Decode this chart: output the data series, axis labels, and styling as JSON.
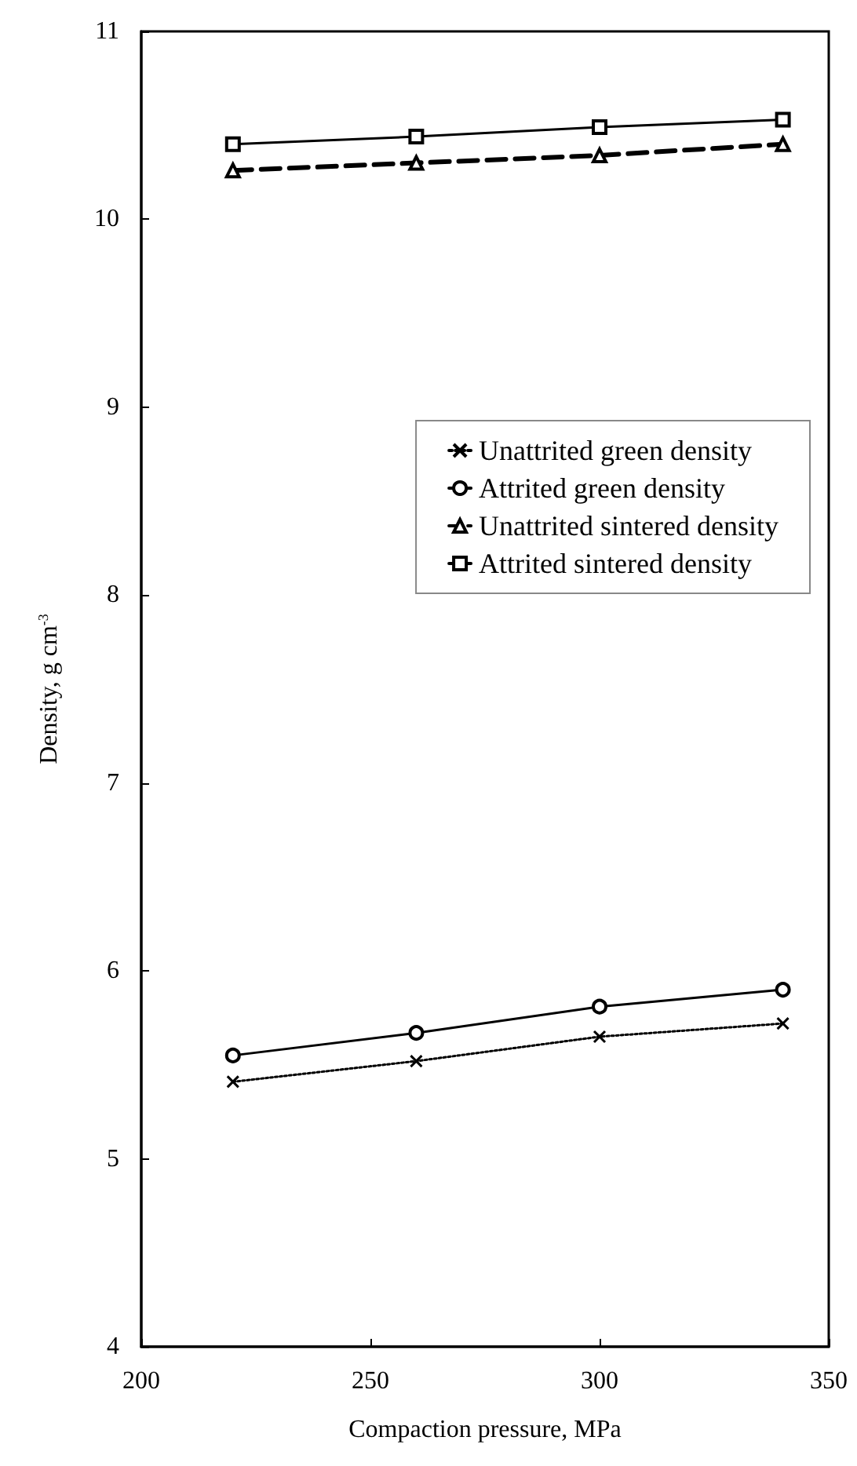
{
  "chart_data": {
    "type": "line",
    "xlabel": "Compaction pressure, MPa",
    "ylabel": "Density, g cm$^{-3}$",
    "x": [
      220,
      260,
      300,
      340
    ],
    "series": [
      {
        "name": "Unattrited green density",
        "color": "#000000",
        "marker": "cross",
        "line_style": "dotted",
        "values": [
          5.41,
          5.52,
          5.65,
          5.72
        ]
      },
      {
        "name": "Attrited green density",
        "color": "#000000",
        "marker": "circle",
        "line_style": "solid",
        "values": [
          5.55,
          5.67,
          5.81,
          5.9
        ]
      },
      {
        "name": "Unattrited sintered density",
        "color": "#000000",
        "marker": "triangle",
        "line_style": "dashed",
        "values": [
          10.26,
          10.3,
          10.34,
          10.4
        ]
      },
      {
        "name": "Attrited sintered density",
        "color": "#000000",
        "marker": "square",
        "line_style": "solid",
        "values": [
          10.4,
          10.44,
          10.49,
          10.53
        ]
      }
    ],
    "xlim": [
      200,
      350
    ],
    "xticks": [
      200,
      250,
      300,
      350
    ],
    "ylim": [
      4,
      11
    ],
    "yticks": [
      4,
      5,
      6,
      7,
      8,
      9,
      10,
      11
    ],
    "grid": false,
    "legend": "right"
  }
}
